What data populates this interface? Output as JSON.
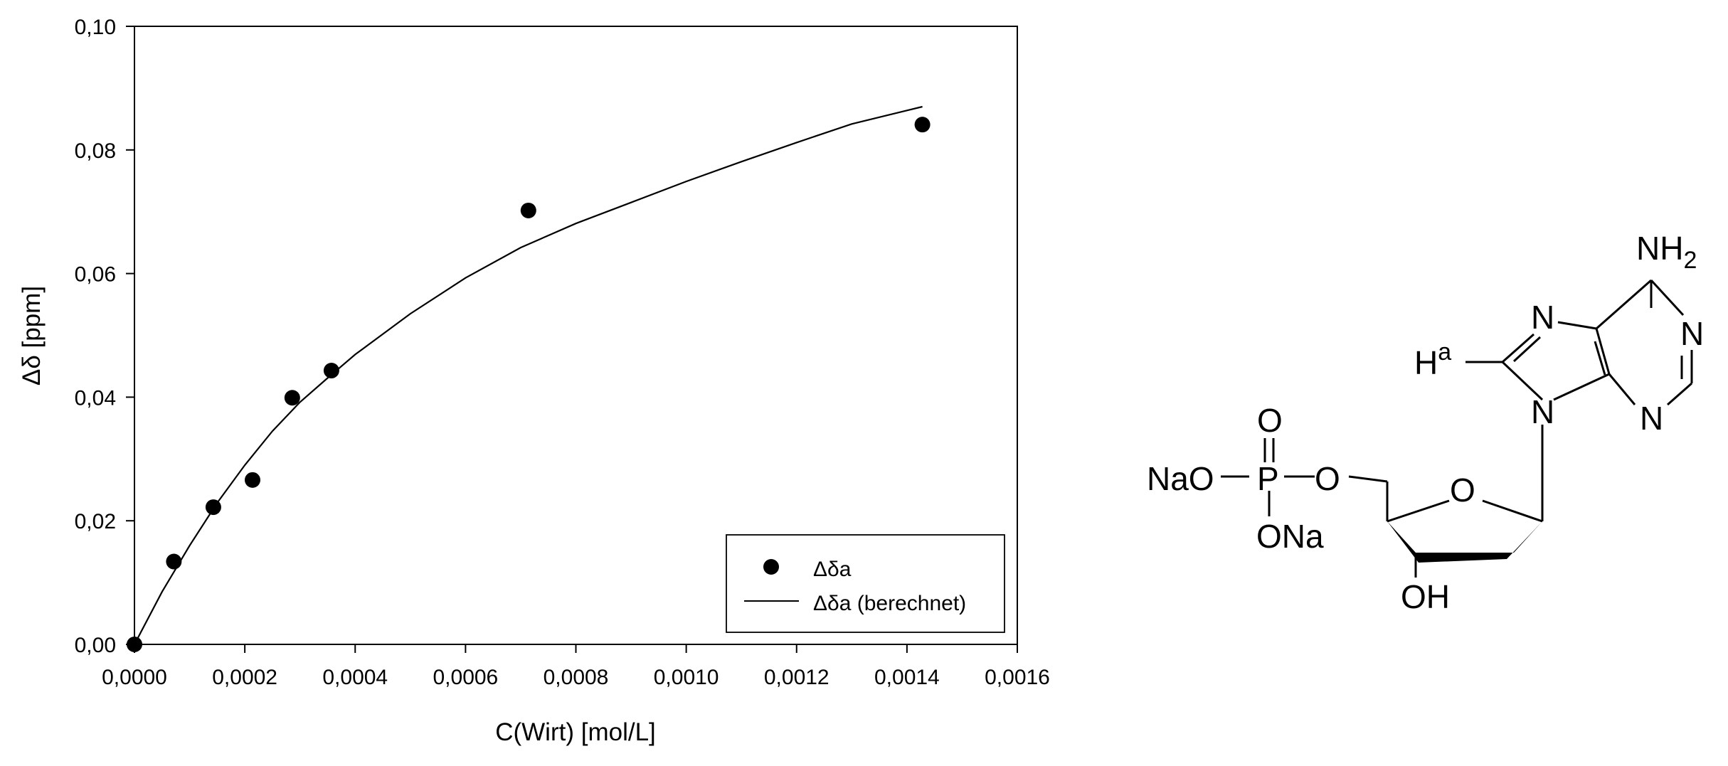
{
  "chart_data": {
    "type": "scatter",
    "title": "",
    "xlabel": "C(Wirt) [mol/L]",
    "ylabel": "Δδ [ppm]",
    "xlim": [
      0,
      0.0016
    ],
    "ylim": [
      0,
      0.1
    ],
    "x_ticks": [
      {
        "value": 0.0,
        "label": "0,0000"
      },
      {
        "value": 0.0002,
        "label": "0,0002"
      },
      {
        "value": 0.0004,
        "label": "0,0004"
      },
      {
        "value": 0.0006,
        "label": "0,0006"
      },
      {
        "value": 0.0008,
        "label": "0,0008"
      },
      {
        "value": 0.001,
        "label": "0,0010"
      },
      {
        "value": 0.0012,
        "label": "0,0012"
      },
      {
        "value": 0.0014,
        "label": "0,0014"
      },
      {
        "value": 0.0016,
        "label": "0,0016"
      }
    ],
    "y_ticks": [
      {
        "value": 0.0,
        "label": "0,00"
      },
      {
        "value": 0.02,
        "label": "0,02"
      },
      {
        "value": 0.04,
        "label": "0,04"
      },
      {
        "value": 0.06,
        "label": "0,06"
      },
      {
        "value": 0.08,
        "label": "0,08"
      },
      {
        "value": 0.1,
        "label": "0,10"
      }
    ],
    "grid": false,
    "legend_position": "bottom-right",
    "series": [
      {
        "name": "Δδa",
        "kind": "scatter",
        "marker": "filled-circle",
        "x": [
          0.0,
          7.14e-05,
          0.000143,
          0.000214,
          0.000286,
          0.000357,
          0.000714,
          0.001428
        ],
        "y": [
          0.0,
          0.0134,
          0.0222,
          0.0266,
          0.0399,
          0.0443,
          0.0702,
          0.0841
        ]
      },
      {
        "name": "Δδa (berechnet)",
        "kind": "line",
        "x": [
          0.0,
          5e-05,
          0.0001,
          0.00015,
          0.0002,
          0.00025,
          0.0003,
          0.00035,
          0.0004,
          0.0005,
          0.0006,
          0.0007,
          0.0008,
          0.0009,
          0.001,
          0.0011,
          0.0012,
          0.0013,
          0.001428
        ],
        "y": [
          0.0,
          0.0085,
          0.016,
          0.0229,
          0.029,
          0.0345,
          0.0392,
          0.0431,
          0.0469,
          0.0535,
          0.0593,
          0.0642,
          0.0681,
          0.0715,
          0.0749,
          0.0781,
          0.0812,
          0.0842,
          0.087
        ]
      }
    ]
  },
  "structure": {
    "labels": {
      "nh2": "NH",
      "nh2_sub": "2",
      "n_top_imid": "N",
      "n_right": "N",
      "n_bottom": "N",
      "n9": "N",
      "h": "H",
      "h_sup": "a",
      "o_double": "O",
      "nao": "NaO",
      "p": "P",
      "o_bridge": "O",
      "ona": "ONa",
      "o_ring": "O",
      "oh": "OH"
    }
  }
}
